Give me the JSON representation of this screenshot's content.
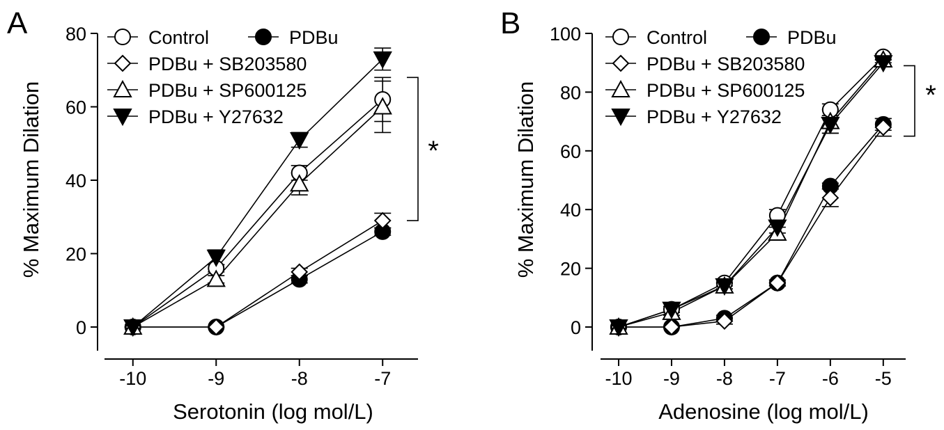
{
  "chart_data": [
    {
      "type": "line",
      "panel": "A",
      "xlabel": "Serotonin (log mol/L)",
      "ylabel": "% Maximum Dilation",
      "xlim": [
        -10.45,
        -6.55
      ],
      "ylim": [
        -9,
        80
      ],
      "x": [
        -10,
        -9,
        -8,
        -7
      ],
      "xticks": [
        -10,
        -9,
        -8,
        -7
      ],
      "xtick_labels": [
        "-10",
        "-9",
        "-8",
        "-7"
      ],
      "yticks": [
        0,
        20,
        40,
        60,
        80
      ],
      "ytick_labels": [
        "0",
        "20",
        "40",
        "60",
        "80"
      ],
      "series": [
        {
          "name": "Control",
          "marker": "circle-open",
          "values": [
            0,
            16,
            42,
            62
          ],
          "errors": [
            0,
            1,
            2,
            6
          ]
        },
        {
          "name": "PDBu",
          "marker": "circle-filled",
          "values": [
            0,
            0,
            13,
            26
          ],
          "errors": [
            0,
            0,
            1,
            1
          ]
        },
        {
          "name": "PDBu + SB203580",
          "marker": "diamond-open",
          "values": [
            0,
            0,
            15,
            29
          ],
          "errors": [
            0,
            0,
            1,
            2
          ]
        },
        {
          "name": "PDBu + SP600125",
          "marker": "triangle-up-open",
          "values": [
            0,
            13,
            39,
            60
          ],
          "errors": [
            0,
            1,
            3,
            7
          ]
        },
        {
          "name": "PDBu + Y27632",
          "marker": "triangle-down-filled",
          "values": [
            0,
            19,
            51,
            73
          ],
          "errors": [
            0,
            2,
            2,
            3
          ]
        }
      ],
      "legend_rows": [
        [
          0,
          1
        ],
        [
          2
        ],
        [
          3
        ],
        [
          4
        ]
      ],
      "significance": {
        "label": "*",
        "y_top": 68,
        "y_bottom": 29
      }
    },
    {
      "type": "line",
      "panel": "B",
      "xlabel": "Adenosine (log mol/L)",
      "ylabel": "% Maximum Dilation",
      "xlim": [
        -10.5,
        -4.55
      ],
      "ylim": [
        -9,
        100
      ],
      "x": [
        -10,
        -9,
        -8,
        -7,
        -6,
        -5
      ],
      "xticks": [
        -10,
        -9,
        -8,
        -7,
        -6,
        -5
      ],
      "xtick_labels": [
        "-10",
        "-9",
        "-8",
        "-7",
        "-6",
        "-5"
      ],
      "yticks": [
        0,
        20,
        40,
        60,
        80,
        100
      ],
      "ytick_labels": [
        "0",
        "20",
        "40",
        "60",
        "80",
        "100"
      ],
      "series": [
        {
          "name": "Control",
          "marker": "circle-open",
          "values": [
            0,
            6,
            15,
            38,
            74,
            92
          ],
          "errors": [
            0,
            1,
            1,
            2,
            2,
            1
          ]
        },
        {
          "name": "PDBu",
          "marker": "circle-filled",
          "values": [
            0,
            0,
            3,
            15,
            48,
            69
          ],
          "errors": [
            0,
            0,
            1,
            1,
            1,
            2
          ]
        },
        {
          "name": "PDBu + SB203580",
          "marker": "diamond-open",
          "values": [
            0,
            0,
            2,
            15,
            44,
            68
          ],
          "errors": [
            0,
            0,
            1,
            1,
            3,
            3
          ]
        },
        {
          "name": "PDBu + SP600125",
          "marker": "triangle-up-open",
          "values": [
            0,
            5,
            14,
            32,
            70,
            91
          ],
          "errors": [
            0,
            1,
            1,
            2,
            4,
            1
          ]
        },
        {
          "name": "PDBu + Y27632",
          "marker": "triangle-down-filled",
          "values": [
            0,
            6,
            14,
            34,
            69,
            90
          ],
          "errors": [
            0,
            1,
            1,
            2,
            3,
            1
          ]
        }
      ],
      "legend_rows": [
        [
          0,
          1
        ],
        [
          2
        ],
        [
          3
        ],
        [
          4
        ]
      ],
      "significance": {
        "label": "*",
        "y_top": 89,
        "y_bottom": 65
      }
    }
  ]
}
